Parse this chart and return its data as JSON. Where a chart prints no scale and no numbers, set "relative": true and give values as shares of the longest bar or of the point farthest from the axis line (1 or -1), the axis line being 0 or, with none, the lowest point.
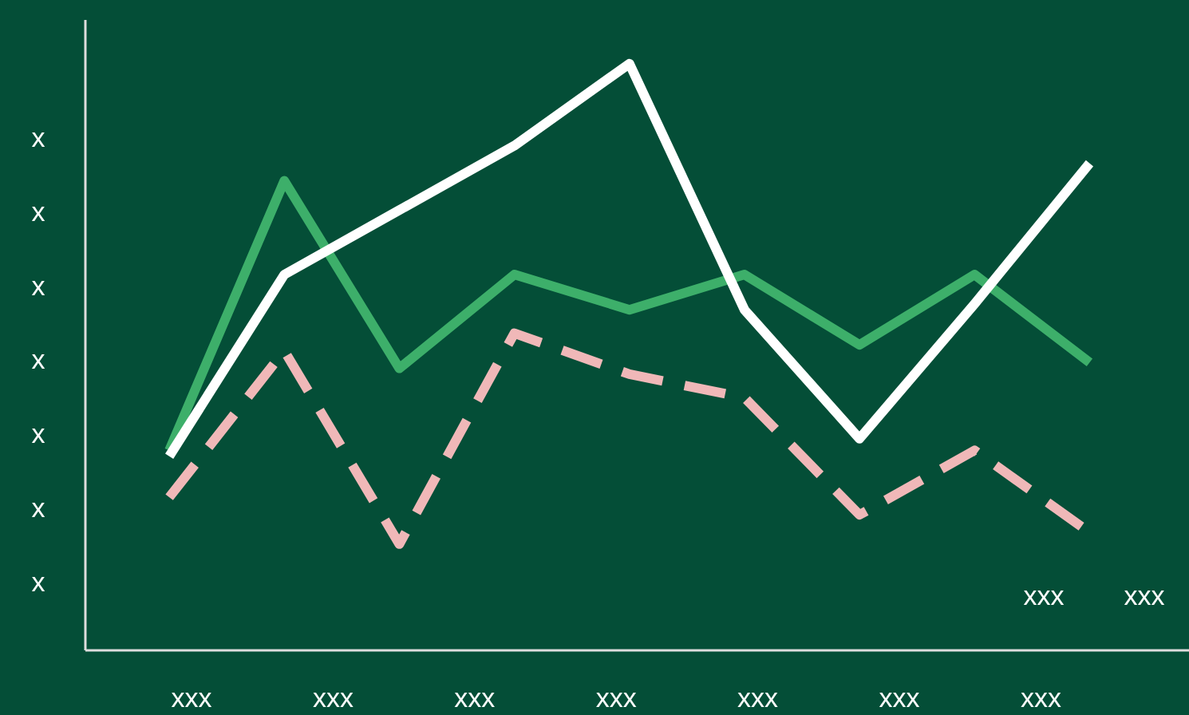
{
  "chart_data": {
    "type": "line",
    "relative": true,
    "categories": [
      null,
      null,
      null,
      null,
      null,
      null,
      null,
      null,
      null
    ],
    "series": [
      {
        "color": "#3daf6a",
        "values": [
          0.34,
          0.8,
          0.48,
          0.64,
          0.58,
          0.64,
          0.52,
          0.64,
          0.49
        ]
      },
      {
        "color": "#ffffff",
        "values": [
          0.33,
          0.64,
          0.75,
          0.86,
          1,
          0.58,
          0.36,
          0.59,
          0.83
        ]
      },
      {
        "color": "#f0b8b8",
        "line_style": "dashed",
        "values": [
          0.26,
          0.51,
          0.18,
          0.54,
          0.47,
          0.43,
          0.23,
          0.34,
          0.2
        ]
      }
    ],
    "annotations": [
      "x",
      "x",
      "x",
      "x",
      "x",
      "x",
      "x",
      "xxx",
      "xxx",
      "xxx",
      "xxx",
      "xxx",
      "xxx",
      "xxx",
      "xxx",
      "xxx"
    ],
    "grid": false
  }
}
